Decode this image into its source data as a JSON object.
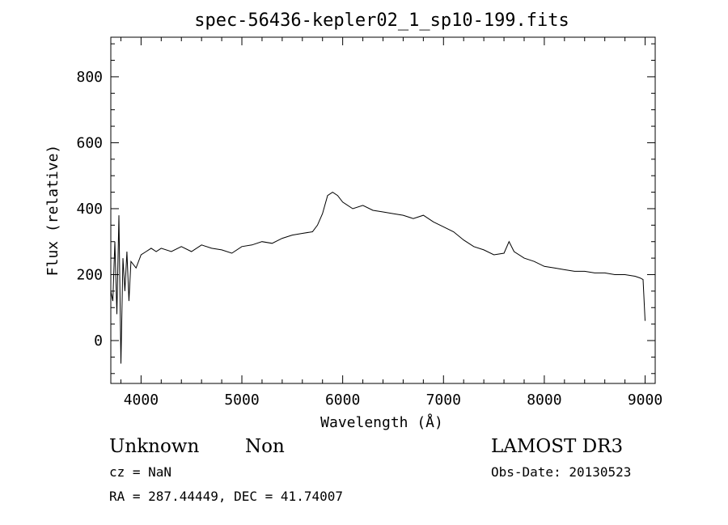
{
  "chart_data": {
    "type": "line",
    "title": "spec-56436-kepler02_1_sp10-199.fits",
    "xlabel": "Wavelength (Å)",
    "ylabel": "Flux (relative)",
    "xlim": [
      3700,
      9100
    ],
    "ylim": [
      -130,
      920
    ],
    "x_ticks": [
      4000,
      5000,
      6000,
      7000,
      8000,
      9000
    ],
    "y_ticks": [
      0,
      200,
      400,
      600,
      800
    ],
    "grid": false,
    "legend": "none",
    "series": [
      {
        "x": [
          3700,
          3720,
          3740,
          3760,
          3780,
          3800,
          3820,
          3840,
          3860,
          3880,
          3900,
          3950,
          4000,
          4050,
          4100,
          4150,
          4200,
          4300,
          4400,
          4500,
          4600,
          4700,
          4800,
          4900,
          5000,
          5100,
          5200,
          5300,
          5400,
          5500,
          5600,
          5700,
          5750,
          5800,
          5850,
          5900,
          5950,
          6000,
          6100,
          6200,
          6300,
          6400,
          6500,
          6600,
          6700,
          6800,
          6900,
          7000,
          7100,
          7200,
          7300,
          7400,
          7500,
          7600,
          7650,
          7700,
          7800,
          7900,
          8000,
          8100,
          8200,
          8300,
          8400,
          8500,
          8600,
          8700,
          8800,
          8900,
          8950,
          8980,
          9000
        ],
        "y": [
          150,
          120,
          300,
          80,
          380,
          -70,
          250,
          150,
          270,
          120,
          240,
          220,
          260,
          270,
          280,
          270,
          280,
          270,
          285,
          270,
          290,
          280,
          275,
          265,
          285,
          290,
          300,
          295,
          310,
          320,
          325,
          330,
          350,
          385,
          440,
          450,
          440,
          420,
          400,
          410,
          395,
          390,
          385,
          380,
          370,
          380,
          360,
          345,
          330,
          305,
          285,
          275,
          260,
          265,
          300,
          270,
          250,
          240,
          225,
          220,
          215,
          210,
          210,
          205,
          205,
          200,
          200,
          195,
          190,
          185,
          60
        ]
      }
    ]
  },
  "footer": {
    "object_type": "Unknown",
    "object_class": "Non",
    "survey": "LAMOST DR3",
    "redshift": "cz = NaN",
    "obs_date": "Obs-Date: 20130523",
    "coords": "RA = 287.44449, DEC =  41.74007"
  }
}
